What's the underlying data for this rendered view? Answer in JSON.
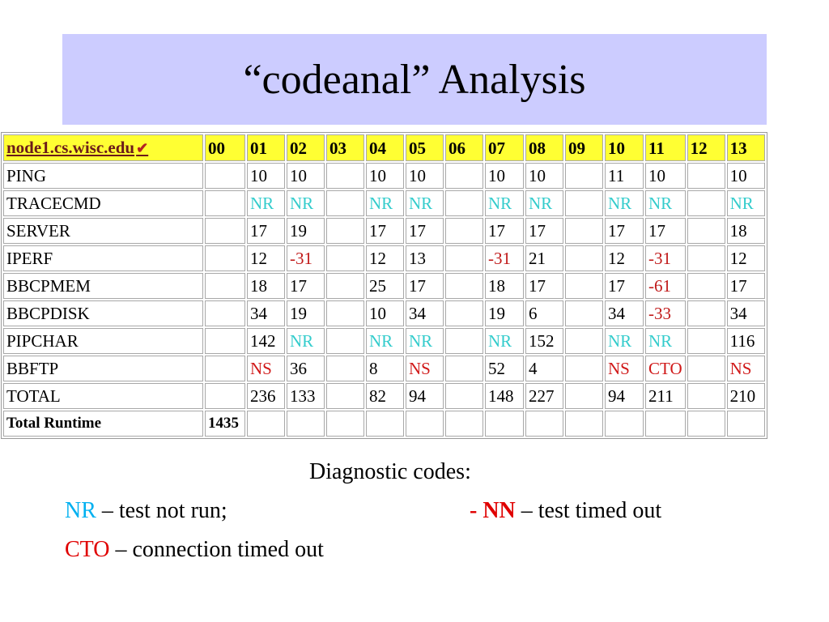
{
  "title": "“codeanal” Analysis",
  "table": {
    "host": "node1.cs.wisc.edu",
    "check_mark": "✔",
    "columns": [
      "00",
      "01",
      "02",
      "03",
      "04",
      "05",
      "06",
      "07",
      "08",
      "09",
      "10",
      "11",
      "12",
      "13"
    ],
    "rows": [
      {
        "label": "PING",
        "cells": [
          "",
          "10",
          "10",
          "",
          "10",
          "10",
          "",
          "10",
          "10",
          "",
          "11",
          "10",
          "",
          "10"
        ]
      },
      {
        "label": "TRACECMD",
        "cells": [
          "",
          "NR",
          "NR",
          "",
          "NR",
          "NR",
          "",
          "NR",
          "NR",
          "",
          "NR",
          "NR",
          "",
          "NR"
        ]
      },
      {
        "label": "SERVER",
        "cells": [
          "",
          "17",
          "19",
          "",
          "17",
          "17",
          "",
          "17",
          "17",
          "",
          "17",
          "17",
          "",
          "18"
        ]
      },
      {
        "label": "IPERF",
        "cells": [
          "",
          "12",
          "-31",
          "",
          "12",
          "13",
          "",
          "-31",
          "21",
          "",
          "12",
          "-31",
          "",
          "12"
        ]
      },
      {
        "label": "BBCPMEM",
        "cells": [
          "",
          "18",
          "17",
          "",
          "25",
          "17",
          "",
          "18",
          "17",
          "",
          "17",
          "-61",
          "",
          "17"
        ]
      },
      {
        "label": "BBCPDISK",
        "cells": [
          "",
          "34",
          "19",
          "",
          "10",
          "34",
          "",
          "19",
          "6",
          "",
          "34",
          "-33",
          "",
          "34"
        ]
      },
      {
        "label": "PIPCHAR",
        "cells": [
          "",
          "142",
          "NR",
          "",
          "NR",
          "NR",
          "",
          "NR",
          "152",
          "",
          "NR",
          "NR",
          "",
          "116"
        ]
      },
      {
        "label": "BBFTP",
        "cells": [
          "",
          "NS",
          "36",
          "",
          "8",
          "NS",
          "",
          "52",
          "4",
          "",
          "NS",
          "CTO",
          "",
          "NS"
        ]
      },
      {
        "label": "TOTAL",
        "cells": [
          "",
          "236",
          "133",
          "",
          "82",
          "94",
          "",
          "148",
          "227",
          "",
          "94",
          "211",
          "",
          "210"
        ]
      },
      {
        "label": "Total Runtime",
        "cells": [
          "1435",
          "",
          "",
          "",
          "",
          "",
          "",
          "",
          "",
          "",
          "",
          "",
          "",
          ""
        ]
      }
    ]
  },
  "legend": {
    "heading": "Diagnostic codes:",
    "nr_code": "NR",
    "nr_text": " – test not run;",
    "nn_code": "- NN",
    "nn_text": " – test timed out",
    "cto_code": "CTO",
    "cto_text": " – connection timed out"
  },
  "colors": {
    "title_bg": "#ccccff",
    "header_bg": "#ffff33",
    "nr": "#33cccc",
    "negative": "#c01818",
    "legend_cyan": "#00b0f0",
    "legend_red": "#e00000"
  }
}
